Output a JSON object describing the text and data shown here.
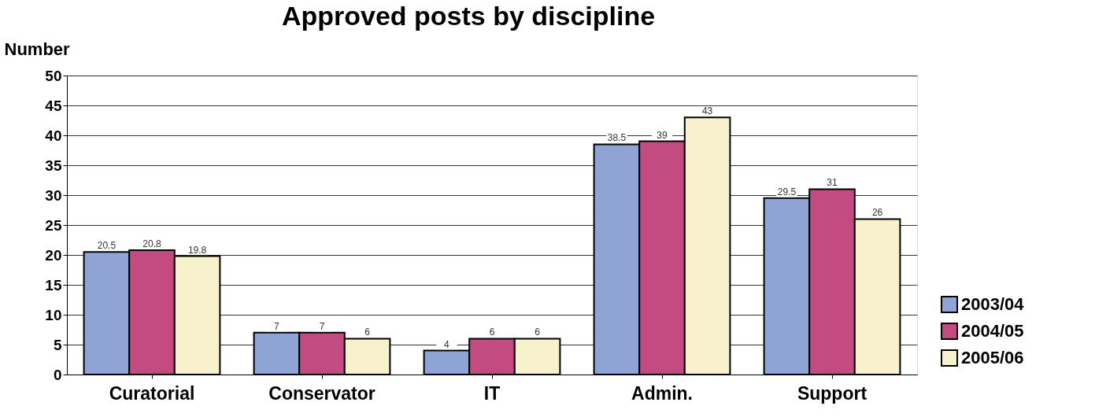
{
  "chart_data": {
    "type": "bar",
    "title": "Approved posts by discipline",
    "ylabel": "Number",
    "categories": [
      "Curatorial",
      "Conservator",
      "IT",
      "Admin.",
      "Support"
    ],
    "series": [
      {
        "name": "2003/04",
        "color": "#8fa3d4",
        "values": [
          20.5,
          7,
          4,
          38.5,
          29.5
        ]
      },
      {
        "name": "2004/05",
        "color": "#c44a82",
        "values": [
          20.8,
          7,
          6,
          39,
          31
        ]
      },
      {
        "name": "2005/06",
        "color": "#f8f2cc",
        "values": [
          19.8,
          6,
          6,
          43,
          26
        ]
      }
    ],
    "ylim": [
      0,
      50
    ],
    "yticks": [
      0,
      5,
      10,
      15,
      20,
      25,
      30,
      35,
      40,
      45,
      50
    ],
    "grid": "y",
    "legend": "bottom right",
    "data_labels": true
  }
}
